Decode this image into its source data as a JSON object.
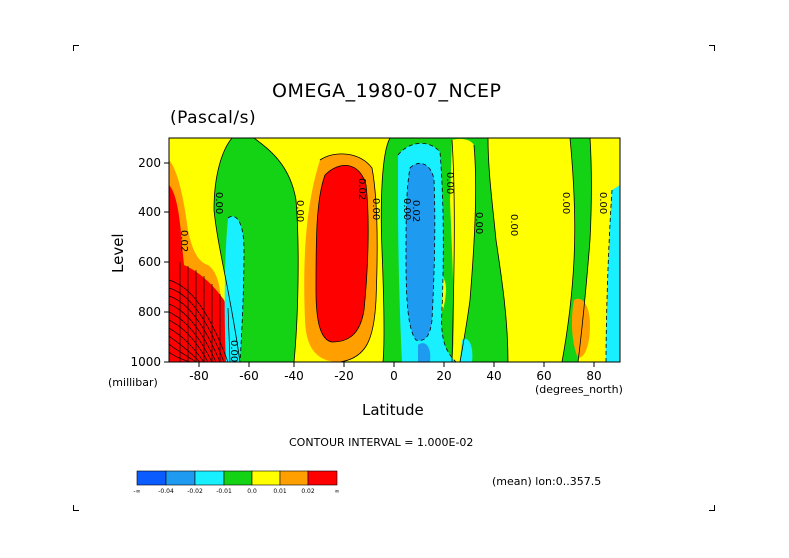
{
  "chart_data": {
    "type": "heatmap",
    "title": "OMEGA_1980-07_NCEP",
    "units": "(Pascal/s)",
    "xlabel": "Latitude",
    "ylabel": "Level",
    "y_units_label": "(millibar)",
    "x_units_label": "(degrees_north)",
    "x_ticks": [
      "-80",
      "-60",
      "-40",
      "-20",
      "0",
      "20",
      "40",
      "60",
      "80"
    ],
    "y_ticks": [
      "200",
      "400",
      "600",
      "800",
      "1000"
    ],
    "xlim": [
      -90,
      90
    ],
    "ylim": [
      1000,
      100
    ],
    "contour_interval_text": "CONTOUR INTERVAL = 1.000E-02",
    "subtitle_right": "(mean) lon:0..357.5",
    "contour_labels": [
      "0.02",
      "0.00",
      "0.00",
      "0.02",
      "0.00",
      "0.00",
      "0.02",
      "0.00",
      "0.00",
      "0.00",
      "0.00",
      "0.00",
      "0.00"
    ],
    "colorbar": {
      "colors": [
        "#0a5cff",
        "#1e9bf0",
        "#18f0ff",
        "#14d214",
        "#ffff00",
        "#ffa000",
        "#ff0000"
      ],
      "labels": [
        "-∞",
        "-0.04",
        "-0.02",
        "-0.01",
        "0.0",
        "0.01",
        "0.02",
        "∞"
      ]
    }
  }
}
